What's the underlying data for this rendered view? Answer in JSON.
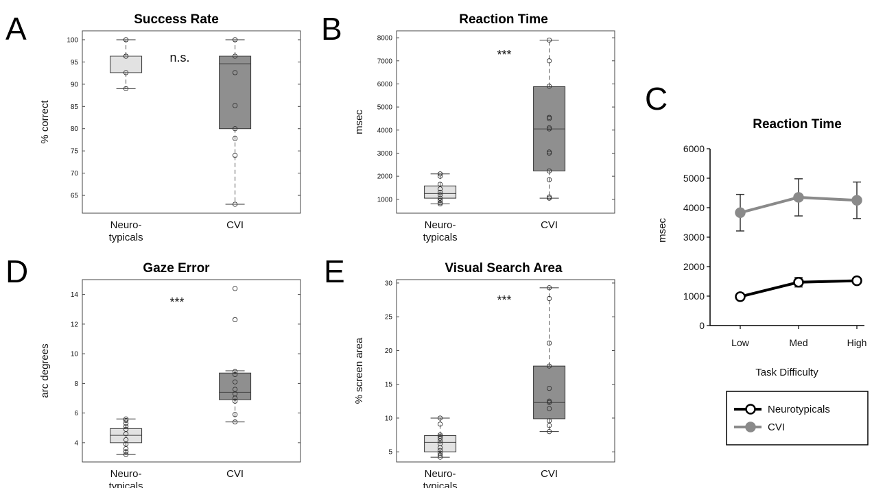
{
  "chart_data": [
    {
      "panel": "A",
      "type": "box",
      "title": "Success Rate",
      "ylabel": "% correct",
      "ylim": [
        61,
        102
      ],
      "yticks": [
        65,
        70,
        75,
        80,
        85,
        90,
        95,
        100
      ],
      "categories": [
        "Neuro-\ntypicals",
        "CVI"
      ],
      "annotation": "n.s.",
      "boxes": [
        {
          "fill": "#e2e2e2",
          "whisker_low": 89,
          "q1": 92.6,
          "median": 96.3,
          "q3": 96.3,
          "whisker_high": 100,
          "points": [
            89,
            92.6,
            96.3,
            96.3,
            100,
            100
          ]
        },
        {
          "fill": "#8f8f8f",
          "whisker_low": 63,
          "q1": 80,
          "median": 94.6,
          "q3": 96.3,
          "whisker_high": 100,
          "points": [
            63,
            74,
            77.8,
            80,
            85.2,
            92.6,
            96.3,
            100,
            100
          ]
        }
      ]
    },
    {
      "panel": "B",
      "type": "box",
      "title": "Reaction Time",
      "ylabel": "msec",
      "ylim": [
        400,
        8300
      ],
      "yticks": [
        1000,
        2000,
        3000,
        4000,
        5000,
        6000,
        7000,
        8000
      ],
      "categories": [
        "Neuro-\ntypicals",
        "CVI"
      ],
      "annotation": "***",
      "boxes": [
        {
          "fill": "#e2e2e2",
          "whisker_low": 800,
          "q1": 1050,
          "median": 1250,
          "q3": 1580,
          "whisker_high": 2100,
          "points": [
            800,
            850,
            950,
            1050,
            1200,
            1300,
            1450,
            1650,
            2000,
            2100
          ]
        },
        {
          "fill": "#8f8f8f",
          "whisker_low": 1050,
          "q1": 2230,
          "median": 4050,
          "q3": 5880,
          "whisker_high": 7900,
          "points": [
            1050,
            1100,
            1850,
            2230,
            3000,
            3050,
            4050,
            4100,
            4500,
            4550,
            5900,
            7000,
            7900
          ]
        }
      ]
    },
    {
      "panel": "D",
      "type": "box",
      "title": "Gaze Error",
      "ylabel": "arc degrees",
      "ylim": [
        2.7,
        15
      ],
      "yticks": [
        4,
        6,
        8,
        10,
        12,
        14
      ],
      "categories": [
        "Neuro-\ntypicals",
        "CVI"
      ],
      "annotation": "***",
      "boxes": [
        {
          "fill": "#e2e2e2",
          "whisker_low": 3.2,
          "q1": 4.0,
          "median": 4.5,
          "q3": 4.95,
          "whisker_high": 5.6,
          "points": [
            3.2,
            3.4,
            3.6,
            3.9,
            4.2,
            4.6,
            4.9,
            5.1,
            5.3,
            5.5,
            5.6
          ]
        },
        {
          "fill": "#8f8f8f",
          "whisker_low": 5.4,
          "q1": 6.9,
          "median": 7.4,
          "q3": 8.7,
          "whisker_high": 8.85,
          "points": [
            5.4,
            5.9,
            6.8,
            7.0,
            7.3,
            7.6,
            8.1,
            8.6,
            8.8,
            12.3,
            14.4
          ]
        }
      ]
    },
    {
      "panel": "E",
      "type": "box",
      "title": "Visual Search Area",
      "ylabel": "% screen area",
      "ylim": [
        3.5,
        30.5
      ],
      "yticks": [
        5,
        10,
        15,
        20,
        25,
        30
      ],
      "categories": [
        "Neuro-\ntypicals",
        "CVI"
      ],
      "annotation": "***",
      "boxes": [
        {
          "fill": "#e2e2e2",
          "whisker_low": 4.2,
          "q1": 5.0,
          "median": 6.4,
          "q3": 7.4,
          "whisker_high": 10.0,
          "points": [
            4.2,
            4.5,
            4.8,
            5.2,
            5.6,
            6.2,
            6.6,
            7.0,
            7.3,
            7.5,
            9.1,
            10.0
          ]
        },
        {
          "fill": "#8f8f8f",
          "whisker_low": 8.0,
          "q1": 9.9,
          "median": 12.3,
          "q3": 17.7,
          "whisker_high": 29.3,
          "points": [
            8.0,
            8.9,
            9.6,
            11.4,
            12.3,
            12.5,
            14.4,
            17.7,
            21.1,
            27.7,
            29.3
          ]
        }
      ]
    },
    {
      "panel": "C",
      "type": "line",
      "title": "Reaction Time",
      "xlabel": "Task Difficulty",
      "ylabel": "msec",
      "categories": [
        "Low",
        "Med",
        "High"
      ],
      "ylim": [
        0,
        6000
      ],
      "yticks": [
        0,
        1000,
        2000,
        3000,
        4000,
        5000,
        6000
      ],
      "legend_position": "bottom",
      "series": [
        {
          "name": "Neurotypicals",
          "color": "#000000",
          "marker_fill": "#ffffff",
          "values": [
            980,
            1470,
            1520
          ],
          "error": [
            50,
            160,
            100
          ]
        },
        {
          "name": "CVI",
          "color": "#8a8a8a",
          "marker_fill": "#8a8a8a",
          "values": [
            3830,
            4350,
            4250
          ],
          "error": [
            620,
            630,
            620
          ]
        }
      ]
    }
  ]
}
